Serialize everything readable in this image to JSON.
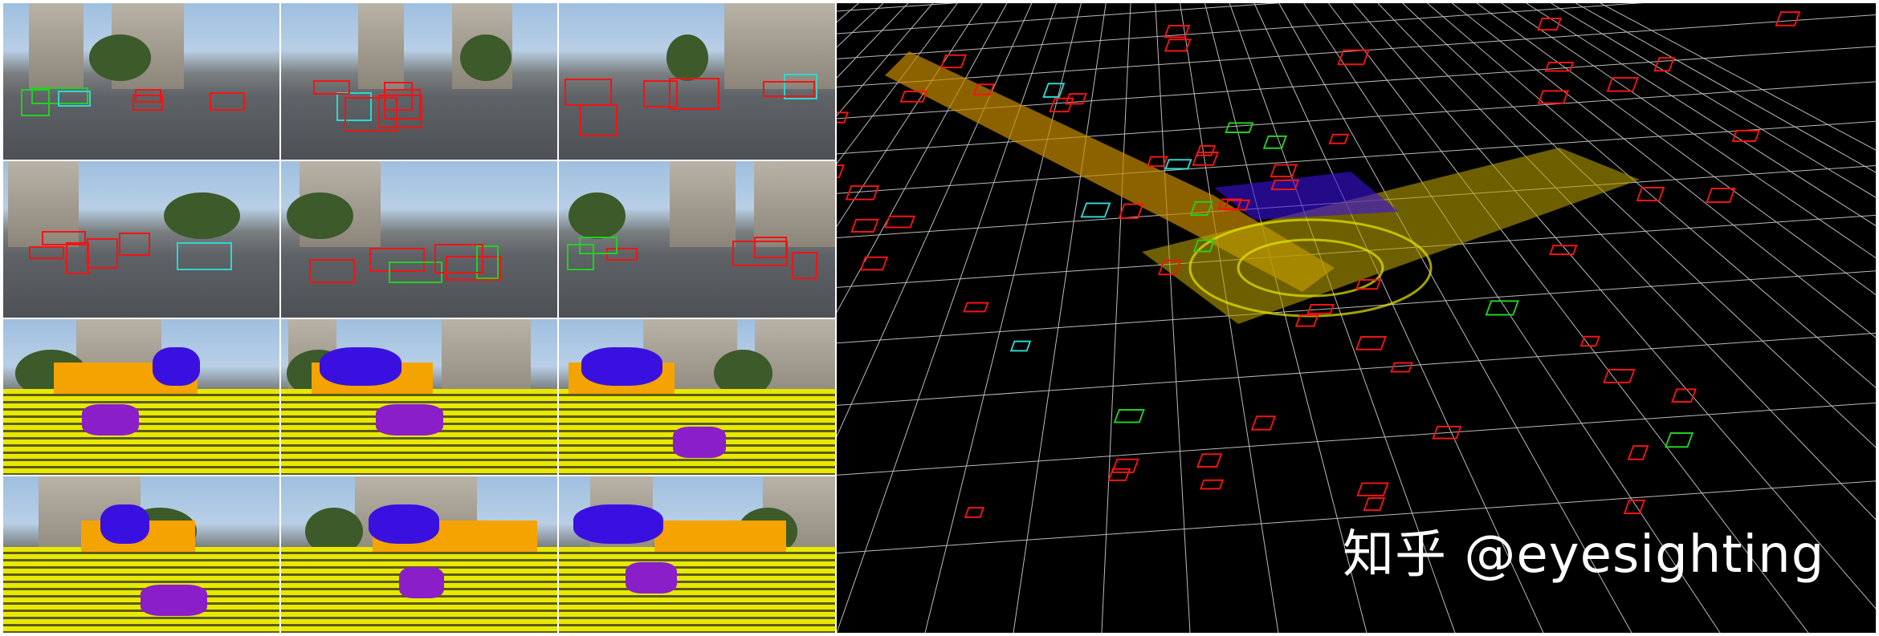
{
  "watermark": "知乎 @eyesighting",
  "camera_grid": {
    "columns": 3,
    "rows": 4,
    "row_types": [
      "detection",
      "detection",
      "segmentation",
      "segmentation"
    ]
  },
  "colors": {
    "vehicle_box": "#f21414",
    "pedestrian_box": "#22d022",
    "cyclist_box": "#2fd6d0",
    "ground": "#e8e800",
    "building": "#f4a300",
    "vegetation": "#3a10e0",
    "vehicle_seg": "#8a1ec8",
    "background": "#000000"
  }
}
